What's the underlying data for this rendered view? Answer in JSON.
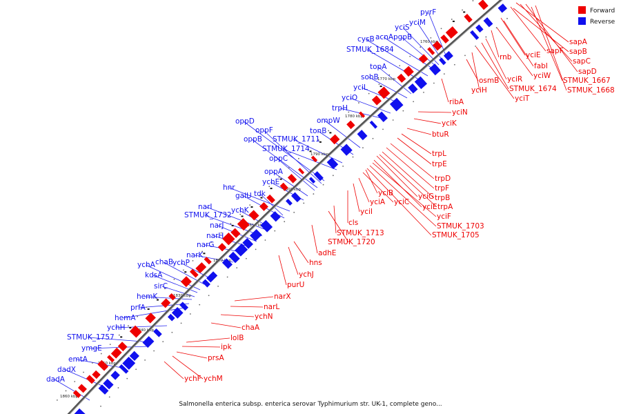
{
  "caption": "Salmonella enterica subsp. enterica serovar Typhimurium str. UK-1, complete geno...",
  "legend": [
    {
      "label": "Forward",
      "color": "#ee0000"
    },
    {
      "label": "Reverse",
      "color": "#1010ee"
    }
  ],
  "colors": {
    "forward": "#ee0000",
    "reverse": "#1010ee",
    "backbone": "#555555",
    "label_line_forward": "#ee0000",
    "label_line_reverse": "#2020ee"
  },
  "ticks": [
    "1760 kbp",
    "1770 kbp",
    "1780 kbp",
    "1790 kbp",
    "1800 kbp",
    "1810 kbp",
    "1820 kbp",
    "1830 kbp",
    "1840 kbp",
    "1850 kbp",
    "1860 kbp"
  ],
  "reverse_genes": [
    "pyrF",
    "yciM",
    "yciS",
    "acnA",
    "pgpB",
    "cysB",
    "STMUK_1684",
    "topA",
    "sohB",
    "yciL",
    "yciO",
    "trpH",
    "ompW",
    "tonB",
    "oppD",
    "oppF",
    "oppB",
    "STMUK_1711",
    "STMUK_1714",
    "oppC",
    "oppA",
    "ychE",
    "hnr",
    "tdk",
    "galU",
    "narI",
    "STMUK_1732",
    "ychK",
    "narJ",
    "narH",
    "narG",
    "narK",
    "ychA",
    "chaB",
    "ychP",
    "kdsA",
    "sirC",
    "hemK",
    "prfA",
    "hemA",
    "ychH",
    "STMUK_1757",
    "ymgE",
    "emtA",
    "dadX",
    "dadA"
  ],
  "forward_genes": [
    "sapA",
    "sapF",
    "sapB",
    "yciE",
    "sapC",
    "rnb",
    "fabI",
    "sapD",
    "yciW",
    "osmB",
    "yciR",
    "STMUK_1667",
    "STMUK_1674",
    "STMUK_1668",
    "yciH",
    "yciT",
    "ribA",
    "yciN",
    "yciK",
    "btuR",
    "trpL",
    "trpE",
    "trpD",
    "trpF",
    "trpB",
    "yciB",
    "yciG",
    "yciC",
    "yciA",
    "yciE2",
    "trpA",
    "yciI",
    "yciF",
    "STMUK_1703",
    "STMUK_1705",
    "cls",
    "STMUK_1713",
    "STMUK_1720",
    "adhE",
    "hns",
    "ychJ",
    "purU",
    "narX",
    "narL",
    "ychN",
    "chaA",
    "lolB",
    "ipk",
    "prsA",
    "ychF",
    "ychM"
  ],
  "labels": {
    "pyrF": "pyrF",
    "yciM": "yciM",
    "yciS": "yciS",
    "acnA": "acnA",
    "pgpB": "pgpB",
    "cysB": "cysB",
    "STMUK_1684": "STMUK_1684",
    "topA": "topA",
    "sohB": "sohB",
    "yciL": "yciL",
    "yciO": "yciO",
    "trpH": "trpH",
    "ompW": "ompW",
    "tonB": "tonB",
    "oppD": "oppD",
    "oppF": "oppF",
    "oppB": "oppB",
    "STMUK_1711": "STMUK_1711",
    "STMUK_1714": "STMUK_1714",
    "oppC": "oppC",
    "oppA": "oppA",
    "ychE": "ychE",
    "hnr": "hnr",
    "tdk": "tdk",
    "galU": "galU",
    "narI": "narI",
    "STMUK_1732": "STMUK_1732",
    "ychK": "ychK",
    "narJ": "narJ",
    "narH": "narH",
    "narG": "narG",
    "narK": "narK",
    "ychA": "ychA",
    "chaB": "chaB",
    "ychP": "ychP",
    "kdsA": "kdsA",
    "sirC": "sirC",
    "hemK": "hemK",
    "prfA": "prfA",
    "hemA": "hemA",
    "ychH": "ychH",
    "STMUK_1757": "STMUK_1757",
    "ymgE": "ymgE",
    "emtA": "emtA",
    "dadX": "dadX",
    "dadA": "dadA",
    "sapA": "sapA",
    "sapF": "sapF",
    "sapB": "sapB",
    "yciE": "yciE",
    "sapC": "sapC",
    "rnb": "rnb",
    "fabI": "fabI",
    "sapD": "sapD",
    "yciW": "yciW",
    "osmB": "osmB",
    "yciR": "yciR",
    "STMUK_1667": "STMUK_1667",
    "STMUK_1674": "STMUK_1674",
    "STMUK_1668": "STMUK_1668",
    "yciH": "yciH",
    "yciT": "yciT",
    "ribA": "ribA",
    "yciN": "yciN",
    "yciK": "yciK",
    "btuR": "btuR",
    "trpL": "trpL",
    "trpE": "trpE",
    "trpD": "trpD",
    "trpF": "trpF",
    "trpB": "trpB",
    "yciB": "yciB",
    "yciG": "yciG",
    "yciC": "yciC",
    "yciA": "yciA",
    "yciE2": "yciE",
    "trpA": "trpA",
    "yciI": "yciI",
    "yciF": "yciF",
    "STMUK_1703": "STMUK_1703",
    "STMUK_1705": "STMUK_1705",
    "cls": "cls",
    "STMUK_1713": "STMUK_1713",
    "STMUK_1720": "STMUK_1720",
    "adhE": "adhE",
    "hns": "hns",
    "ychJ": "ychJ",
    "purU": "purU",
    "narX": "narX",
    "narL": "narL",
    "ychN": "ychN",
    "chaA": "chaA",
    "lolB": "lolB",
    "ipk": "ipk",
    "prsA": "prsA",
    "ychF": "ychF",
    "ychM": "ychM"
  }
}
